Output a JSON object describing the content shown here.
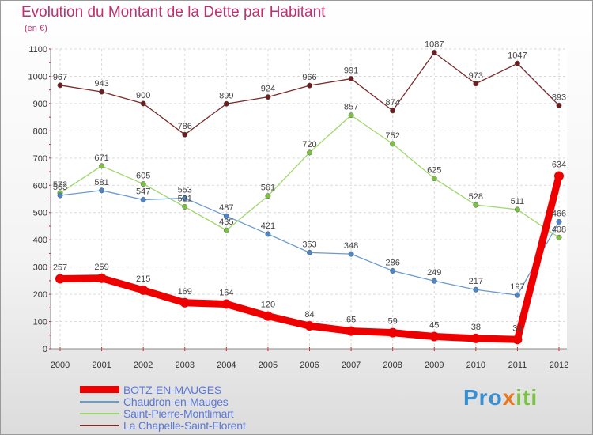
{
  "header": {
    "title": "Evolution du Montant de la Dette par Habitant",
    "unit": "(en €)"
  },
  "logo": {
    "part1": "Pro",
    "part2": "x",
    "part3": "iti"
  },
  "chart_data": {
    "type": "line",
    "x": [
      "2000",
      "2001",
      "2002",
      "2003",
      "2004",
      "2005",
      "2006",
      "2007",
      "2008",
      "2009",
      "2010",
      "2011",
      "2012"
    ],
    "ylim": [
      0,
      1100
    ],
    "yticks": [
      0,
      100,
      200,
      300,
      400,
      500,
      600,
      700,
      800,
      900,
      1000,
      1100
    ],
    "grid": true,
    "legend_position": "bottom-left",
    "series": [
      {
        "name": "BOTZ-EN-MAUGES",
        "color": "#ee0000",
        "width": 9,
        "marker_color": "#ee0000",
        "values": [
          257,
          259,
          215,
          169,
          164,
          120,
          84,
          65,
          59,
          45,
          38,
          34,
          634
        ]
      },
      {
        "name": "Chaudron-en-Mauges",
        "color": "#6a9bd0",
        "width": 1.3,
        "marker_color": "#4a86c8",
        "values": [
          563,
          581,
          547,
          553,
          487,
          421,
          353,
          348,
          286,
          249,
          217,
          197,
          466
        ]
      },
      {
        "name": "Saint-Pierre-Montlimart",
        "color": "#9fd86a",
        "width": 1.3,
        "marker_color": "#7cc242",
        "values": [
          572,
          671,
          605,
          521,
          435,
          561,
          720,
          857,
          752,
          625,
          528,
          511,
          408
        ]
      },
      {
        "name": "La Chapelle-Saint-Florent",
        "color": "#7a2a2a",
        "width": 1.3,
        "marker_color": "#6e1e1e",
        "values": [
          967,
          943,
          900,
          786,
          899,
          924,
          966,
          991,
          874,
          1087,
          973,
          1047,
          893
        ]
      }
    ]
  }
}
